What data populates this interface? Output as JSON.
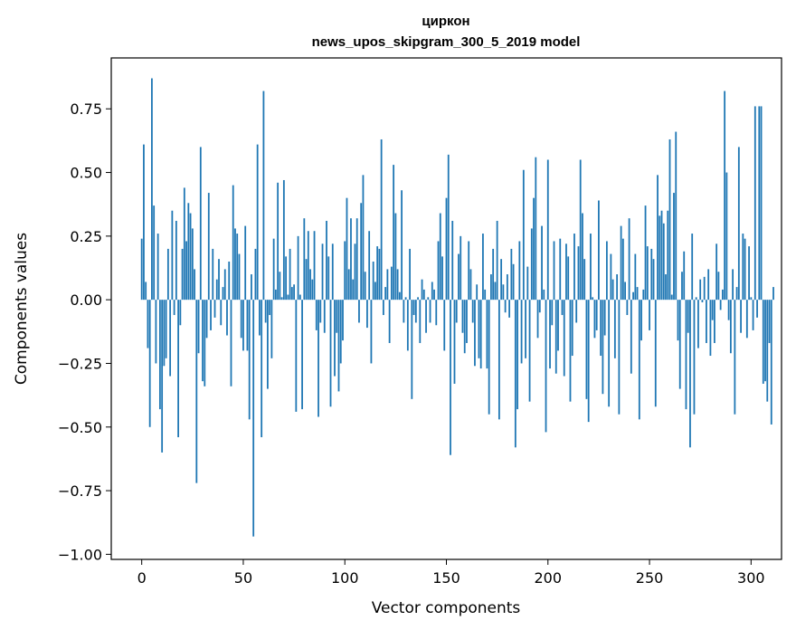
{
  "chart_data": {
    "type": "bar",
    "title": "циркон",
    "subtitle": "news_upos_skipgram_300_5_2019 model",
    "xlabel": "Vector components",
    "ylabel": "Components values",
    "xlim": [
      -15,
      315
    ],
    "ylim": [
      -1.02,
      0.95
    ],
    "xticks": [
      0,
      50,
      100,
      150,
      200,
      250,
      300
    ],
    "yticks": [
      -1.0,
      -0.75,
      -0.5,
      -0.25,
      0.0,
      0.25,
      0.5,
      0.75
    ],
    "ytick_labels": [
      "−1.00",
      "−0.75",
      "−0.50",
      "−0.25",
      "0.00",
      "0.25",
      "0.50",
      "0.75"
    ],
    "grid": false,
    "bar_color": "#1f77b4",
    "values": [
      0.24,
      0.61,
      0.07,
      -0.19,
      -0.5,
      0.87,
      0.37,
      -0.25,
      0.26,
      -0.43,
      -0.6,
      -0.26,
      -0.23,
      0.2,
      -0.3,
      0.35,
      -0.06,
      0.31,
      -0.54,
      -0.1,
      0.2,
      0.44,
      0.23,
      0.38,
      0.34,
      0.28,
      0.12,
      -0.72,
      -0.21,
      0.6,
      -0.32,
      -0.34,
      -0.15,
      0.42,
      -0.12,
      0.2,
      -0.07,
      0.08,
      0.16,
      -0.1,
      0.05,
      0.12,
      -0.14,
      0.15,
      -0.34,
      0.45,
      0.28,
      0.26,
      0.18,
      -0.15,
      -0.2,
      0.29,
      -0.2,
      -0.47,
      0.1,
      -0.93,
      0.2,
      0.61,
      -0.14,
      -0.54,
      0.82,
      -0.09,
      -0.35,
      -0.06,
      -0.23,
      0.24,
      0.04,
      0.46,
      0.11,
      0.01,
      0.47,
      0.17,
      0.02,
      0.2,
      0.05,
      0.06,
      -0.44,
      0.25,
      0.02,
      -0.43,
      0.32,
      0.16,
      0.27,
      0.12,
      0.08,
      0.27,
      -0.12,
      -0.46,
      -0.09,
      0.22,
      -0.13,
      0.31,
      0.17,
      -0.42,
      0.22,
      -0.3,
      -0.13,
      -0.36,
      -0.25,
      -0.16,
      0.23,
      0.4,
      0.12,
      0.32,
      0.08,
      0.22,
      0.32,
      -0.09,
      0.38,
      0.49,
      0.11,
      -0.11,
      0.27,
      -0.25,
      0.15,
      0.07,
      0.21,
      0.2,
      0.63,
      -0.06,
      0.05,
      0.12,
      -0.17,
      0.13,
      0.53,
      0.34,
      0.12,
      0.03,
      0.43,
      -0.09,
      0.01,
      -0.2,
      0.2,
      -0.39,
      -0.06,
      -0.09,
      0.01,
      -0.17,
      0.08,
      0.04,
      -0.13,
      0.01,
      -0.09,
      0.07,
      0.04,
      -0.1,
      0.23,
      0.34,
      0.17,
      -0.2,
      0.4,
      0.57,
      -0.61,
      0.31,
      -0.33,
      -0.09,
      0.18,
      0.25,
      -0.13,
      -0.21,
      -0.17,
      0.23,
      0.12,
      -0.09,
      -0.26,
      0.06,
      -0.23,
      -0.27,
      0.26,
      0.04,
      -0.27,
      -0.45,
      0.1,
      0.2,
      0.07,
      0.31,
      -0.47,
      0.16,
      0.06,
      -0.05,
      0.1,
      -0.07,
      0.2,
      0.14,
      -0.58,
      -0.43,
      0.23,
      -0.25,
      0.51,
      -0.23,
      0.13,
      -0.4,
      0.28,
      0.4,
      0.56,
      -0.15,
      -0.05,
      0.29,
      0.04,
      -0.52,
      0.55,
      -0.27,
      -0.1,
      0.23,
      -0.29,
      -0.2,
      0.24,
      -0.06,
      -0.3,
      0.22,
      0.17,
      -0.4,
      -0.22,
      0.26,
      -0.09,
      0.21,
      0.55,
      0.34,
      0.16,
      -0.39,
      -0.48,
      0.26,
      0.01,
      -0.15,
      -0.12,
      0.39,
      -0.22,
      -0.37,
      -0.14,
      0.23,
      -0.42,
      0.18,
      0.08,
      -0.23,
      0.1,
      -0.45,
      0.29,
      0.24,
      0.07,
      -0.06,
      0.32,
      -0.29,
      0.03,
      0.18,
      0.05,
      -0.47,
      -0.16,
      0.04,
      0.37,
      0.21,
      -0.12,
      0.2,
      0.16,
      -0.42,
      0.49,
      0.33,
      0.35,
      0.3,
      0.1,
      0.35,
      0.63,
      0.02,
      0.42,
      0.66,
      -0.16,
      -0.35,
      0.11,
      0.19,
      -0.43,
      -0.13,
      -0.58,
      0.26,
      -0.45,
      0.01,
      -0.19,
      0.08,
      -0.01,
      0.09,
      -0.17,
      0.12,
      -0.22,
      -0.08,
      -0.17,
      0.22,
      0.11,
      -0.04,
      0.04,
      0.82,
      0.5,
      -0.08,
      -0.21,
      0.12,
      -0.45,
      0.05,
      0.6,
      -0.13,
      0.26,
      0.24,
      -0.15,
      0.21,
      0.01,
      -0.12,
      0.76,
      -0.07,
      0.76,
      0.76,
      -0.33,
      -0.32,
      -0.4,
      -0.17,
      -0.49,
      0.05
    ]
  }
}
